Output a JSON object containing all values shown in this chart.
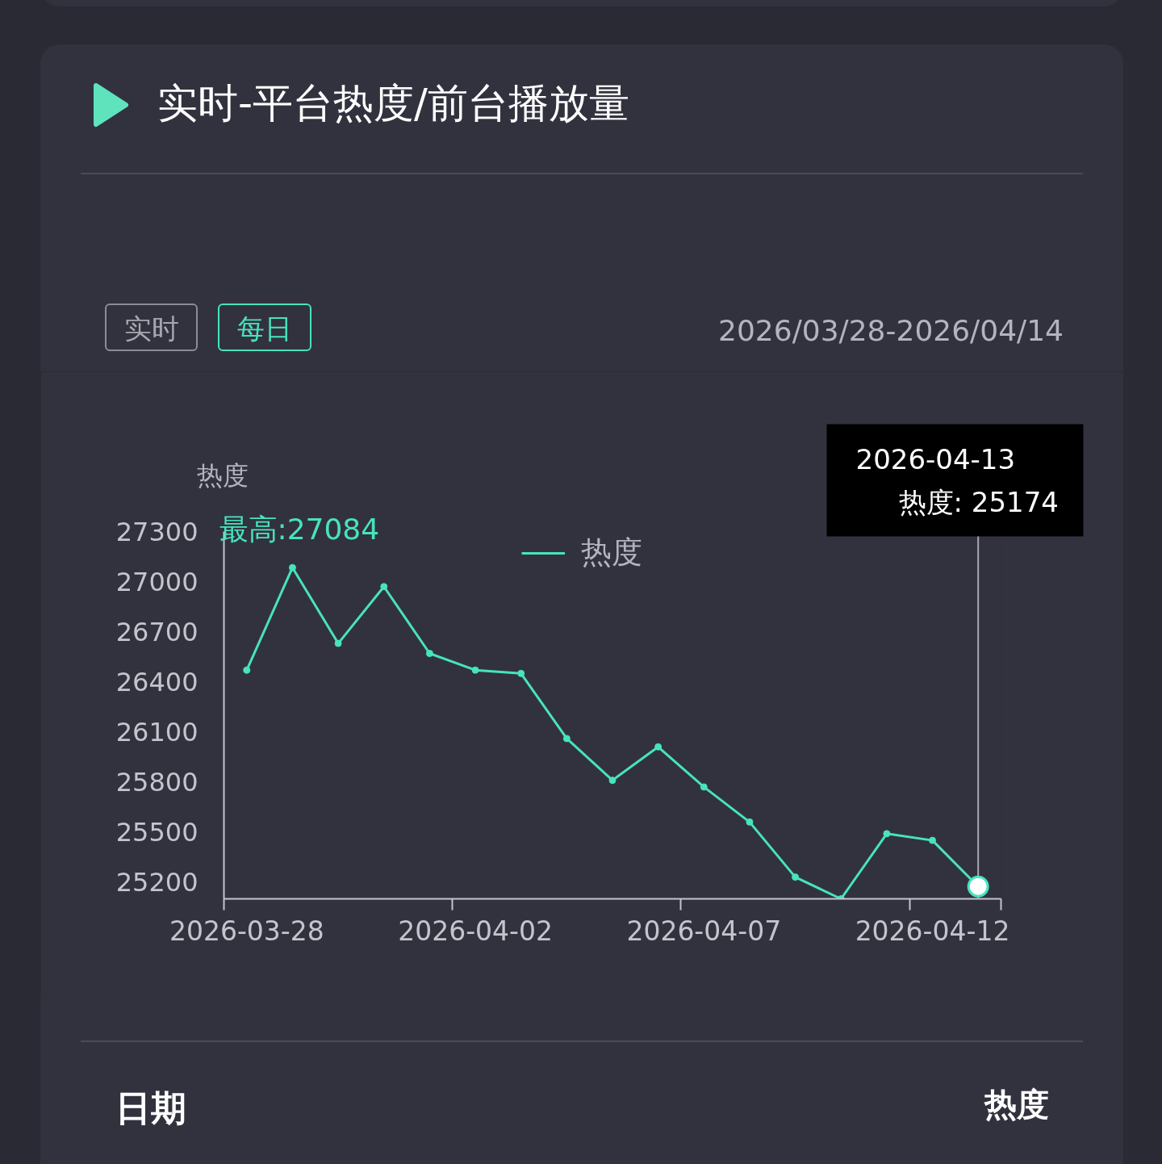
{
  "chart_data": {
    "type": "line",
    "title": "实时-平台热度/前台播放量",
    "subtitle": "2026/03/28-2026/04/14",
    "ylabel": "热度",
    "x": [
      "2026-03-28",
      "2026-03-29",
      "2026-03-30",
      "2026-03-31",
      "2026-04-01",
      "2026-04-02",
      "2026-04-03",
      "2026-04-04",
      "2026-04-05",
      "2026-04-06",
      "2026-04-07",
      "2026-04-08",
      "2026-04-09",
      "2026-04-10",
      "2026-04-11",
      "2026-04-12",
      "2026-04-13"
    ],
    "series": [
      {
        "name": "热度",
        "color": "#47e3bd",
        "values": [
          26470,
          27084,
          26630,
          26970,
          26570,
          26470,
          26450,
          26060,
          25810,
          26010,
          25770,
          25560,
          25230,
          25100,
          25490,
          25450,
          25174
        ]
      }
    ],
    "xlim": [
      "2026-03-27T12:00",
      "2026-04-13T12:00"
    ],
    "xticks": [
      {
        "value": "2026-03-27T12:00",
        "label": null
      },
      {
        "value": "2026-03-28",
        "label": "2026-03-28"
      },
      {
        "value": "2026-04-01T12:00",
        "label": null
      },
      {
        "value": "2026-04-02",
        "label": "2026-04-02"
      },
      {
        "value": "2026-04-06T12:00",
        "label": null
      },
      {
        "value": "2026-04-07",
        "label": "2026-04-07"
      },
      {
        "value": "2026-04-11T12:00",
        "label": null
      },
      {
        "value": "2026-04-12",
        "label": "2026-04-12"
      },
      {
        "value": "2026-04-13T12:00",
        "label": null
      }
    ],
    "ylim": [
      25100,
      27300
    ],
    "yticks": [
      25200,
      25500,
      25800,
      26100,
      26400,
      26700,
      27000,
      27300
    ],
    "ref_lines": [
      {
        "axis": "x",
        "value": "2026-04-13",
        "color": "#a8a8b0"
      }
    ],
    "legend": "top",
    "marker": "circle",
    "line_style": "solid",
    "annotations": [
      "实时",
      "每日",
      "最高:27084",
      "2026-04-13\n热度: 25174",
      "日期",
      "热度"
    ]
  }
}
